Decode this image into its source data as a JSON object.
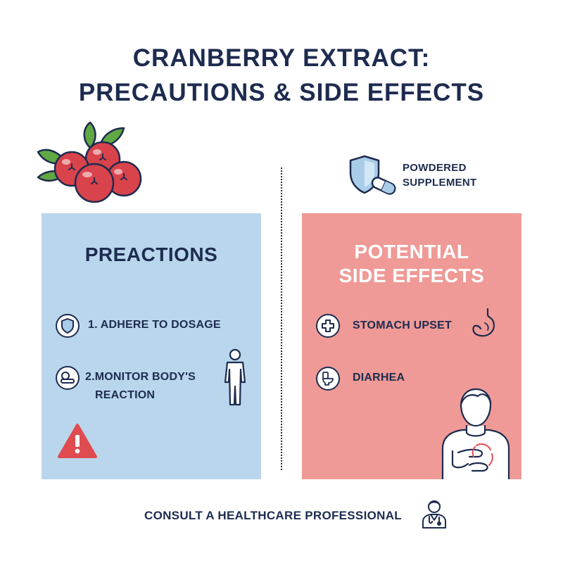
{
  "title": {
    "line1": "CRANBERRY EXTRACT:",
    "line2": "PRECAUTIONS & SIDE EFFECTS"
  },
  "supplement": {
    "line1": "POWDERED",
    "line2": "SUPPLEMENT",
    "icon": "shield-capsule-icon"
  },
  "precautions": {
    "heading": "PREACTIONS",
    "items": [
      {
        "line1": "1. ADHERE TO DOSAGE",
        "icon": "shield-icon"
      },
      {
        "line1": "2.MONITOR BODY'S",
        "line2": "REACTION",
        "icon": "scale-icon"
      }
    ],
    "extra_icons": [
      "person-icon",
      "warning-icon"
    ]
  },
  "side_effects": {
    "heading_line1": "POTENTIAL",
    "heading_line2": "SIDE EFFECTS",
    "items": [
      {
        "label": "STOMACH UPSET",
        "icon": "medical-cross-icon"
      },
      {
        "label": "DIARHEA",
        "icon": "toilet-icon"
      }
    ],
    "extra_icons": [
      "stomach-icon",
      "stomach-ache-person-icon"
    ]
  },
  "footer": {
    "text": "CONSULT A HEALTHCARE PROFESSIONAL",
    "icon": "doctor-icon"
  },
  "colors": {
    "navy": "#1d2b4f",
    "panel_left": "#b9d6ec",
    "panel_right": "#ef9a96",
    "berry_red": "#d9434b",
    "leaf_green": "#5fa844",
    "warning_red": "#e04b4f"
  }
}
